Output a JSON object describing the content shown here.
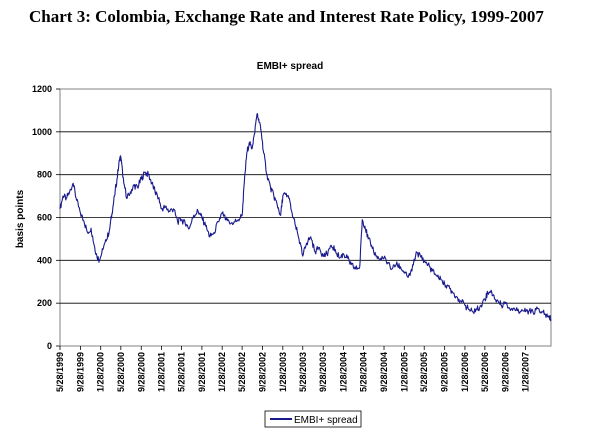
{
  "heading": "Chart 3: Colombia, Exchange Rate and Interest Rate Policy, 1999-2007",
  "chart_data": {
    "type": "line",
    "title": "EMBI+ spread",
    "ylabel": "basis points",
    "xlabel": "",
    "ylim": [
      0,
      1200
    ],
    "yticks": [
      0,
      200,
      400,
      600,
      800,
      1000,
      1200
    ],
    "xlim": [
      "1999-05-28",
      "2007-06-30"
    ],
    "xticks": [
      "5/28/1999",
      "9/28/1999",
      "1/28/2000",
      "5/28/2000",
      "9/28/2000",
      "1/28/2001",
      "5/28/2001",
      "9/28/2001",
      "1/28/2002",
      "5/28/2002",
      "9/28/2002",
      "1/28/2003",
      "5/28/2003",
      "9/28/2003",
      "1/28/2004",
      "5/28/2004",
      "9/28/2004",
      "1/28/2005",
      "5/28/2005",
      "9/28/2005",
      "1/28/2006",
      "5/28/2006",
      "9/28/2006",
      "1/28/2007"
    ],
    "grid": "horizontal",
    "legend_position": "bottom",
    "line_color": "#1a1a8c",
    "series": [
      {
        "name": "EMBI+ spread",
        "points": [
          [
            "1999-05-28",
            640
          ],
          [
            "1999-06-15",
            700
          ],
          [
            "1999-07-05",
            690
          ],
          [
            "1999-07-25",
            720
          ],
          [
            "1999-08-15",
            760
          ],
          [
            "1999-09-05",
            680
          ],
          [
            "1999-09-28",
            620
          ],
          [
            "1999-10-20",
            580
          ],
          [
            "1999-11-10",
            530
          ],
          [
            "1999-12-01",
            550
          ],
          [
            "1999-12-20",
            470
          ],
          [
            "2000-01-05",
            420
          ],
          [
            "2000-01-20",
            400
          ],
          [
            "2000-02-10",
            450
          ],
          [
            "2000-03-01",
            490
          ],
          [
            "2000-03-20",
            540
          ],
          [
            "2000-04-05",
            620
          ],
          [
            "2000-04-20",
            700
          ],
          [
            "2000-05-05",
            780
          ],
          [
            "2000-05-20",
            870
          ],
          [
            "2000-05-28",
            880
          ],
          [
            "2000-06-15",
            760
          ],
          [
            "2000-07-05",
            690
          ],
          [
            "2000-07-25",
            720
          ],
          [
            "2000-08-15",
            750
          ],
          [
            "2000-09-05",
            740
          ],
          [
            "2000-09-28",
            780
          ],
          [
            "2000-10-20",
            810
          ],
          [
            "2000-11-10",
            800
          ],
          [
            "2000-12-01",
            760
          ],
          [
            "2000-12-20",
            720
          ],
          [
            "2001-01-10",
            690
          ],
          [
            "2001-01-28",
            640
          ],
          [
            "2001-02-20",
            650
          ],
          [
            "2001-03-15",
            630
          ],
          [
            "2001-04-10",
            640
          ],
          [
            "2001-05-05",
            580
          ],
          [
            "2001-05-28",
            590
          ],
          [
            "2001-06-20",
            570
          ],
          [
            "2001-07-15",
            550
          ],
          [
            "2001-08-10",
            610
          ],
          [
            "2001-09-05",
            630
          ],
          [
            "2001-09-28",
            600
          ],
          [
            "2001-10-20",
            560
          ],
          [
            "2001-11-15",
            510
          ],
          [
            "2001-12-10",
            530
          ],
          [
            "2002-01-05",
            580
          ],
          [
            "2002-01-28",
            620
          ],
          [
            "2002-02-20",
            590
          ],
          [
            "2002-03-15",
            570
          ],
          [
            "2002-04-10",
            580
          ],
          [
            "2002-05-05",
            590
          ],
          [
            "2002-05-28",
            610
          ],
          [
            "2002-06-10",
            760
          ],
          [
            "2002-06-25",
            900
          ],
          [
            "2002-07-10",
            950
          ],
          [
            "2002-07-25",
            920
          ],
          [
            "2002-08-10",
            990
          ],
          [
            "2002-08-25",
            1080
          ],
          [
            "2002-09-05",
            1060
          ],
          [
            "2002-09-20",
            1000
          ],
          [
            "2002-10-05",
            900
          ],
          [
            "2002-10-25",
            800
          ],
          [
            "2002-11-15",
            740
          ],
          [
            "2002-12-05",
            700
          ],
          [
            "2002-12-25",
            660
          ],
          [
            "2003-01-15",
            610
          ],
          [
            "2003-01-28",
            700
          ],
          [
            "2003-02-15",
            710
          ],
          [
            "2003-03-05",
            690
          ],
          [
            "2003-03-25",
            620
          ],
          [
            "2003-04-15",
            560
          ],
          [
            "2003-05-05",
            500
          ],
          [
            "2003-05-28",
            420
          ],
          [
            "2003-06-20",
            480
          ],
          [
            "2003-07-15",
            510
          ],
          [
            "2003-08-10",
            440
          ],
          [
            "2003-09-05",
            460
          ],
          [
            "2003-09-28",
            420
          ],
          [
            "2003-10-20",
            430
          ],
          [
            "2003-11-15",
            470
          ],
          [
            "2003-12-10",
            450
          ],
          [
            "2004-01-05",
            410
          ],
          [
            "2004-01-28",
            430
          ],
          [
            "2004-02-20",
            410
          ],
          [
            "2004-03-15",
            380
          ],
          [
            "2004-04-10",
            360
          ],
          [
            "2004-05-05",
            370
          ],
          [
            "2004-05-20",
            590
          ],
          [
            "2004-06-05",
            560
          ],
          [
            "2004-06-25",
            500
          ],
          [
            "2004-07-15",
            470
          ],
          [
            "2004-08-10",
            420
          ],
          [
            "2004-09-05",
            400
          ],
          [
            "2004-09-28",
            410
          ],
          [
            "2004-10-20",
            390
          ],
          [
            "2004-11-15",
            360
          ],
          [
            "2004-12-10",
            380
          ],
          [
            "2005-01-05",
            370
          ],
          [
            "2005-01-28",
            340
          ],
          [
            "2005-02-20",
            320
          ],
          [
            "2005-03-15",
            350
          ],
          [
            "2005-04-10",
            440
          ],
          [
            "2005-05-05",
            420
          ],
          [
            "2005-05-28",
            400
          ],
          [
            "2005-06-20",
            380
          ],
          [
            "2005-07-15",
            350
          ],
          [
            "2005-08-10",
            330
          ],
          [
            "2005-09-05",
            310
          ],
          [
            "2005-09-28",
            290
          ],
          [
            "2005-10-20",
            280
          ],
          [
            "2005-11-15",
            250
          ],
          [
            "2005-12-10",
            230
          ],
          [
            "2006-01-05",
            210
          ],
          [
            "2006-01-28",
            190
          ],
          [
            "2006-02-20",
            170
          ],
          [
            "2006-03-15",
            160
          ],
          [
            "2006-04-10",
            170
          ],
          [
            "2006-05-05",
            190
          ],
          [
            "2006-05-28",
            220
          ],
          [
            "2006-06-15",
            250
          ],
          [
            "2006-07-05",
            260
          ],
          [
            "2006-07-25",
            220
          ],
          [
            "2006-08-15",
            210
          ],
          [
            "2006-09-05",
            190
          ],
          [
            "2006-09-28",
            205
          ],
          [
            "2006-10-20",
            180
          ],
          [
            "2006-11-15",
            175
          ],
          [
            "2006-12-10",
            165
          ],
          [
            "2007-01-05",
            170
          ],
          [
            "2007-01-28",
            160
          ],
          [
            "2007-02-20",
            165
          ],
          [
            "2007-03-15",
            155
          ],
          [
            "2007-04-10",
            175
          ],
          [
            "2007-05-05",
            160
          ],
          [
            "2007-05-28",
            145
          ],
          [
            "2007-06-15",
            135
          ],
          [
            "2007-06-30",
            125
          ]
        ]
      }
    ]
  }
}
